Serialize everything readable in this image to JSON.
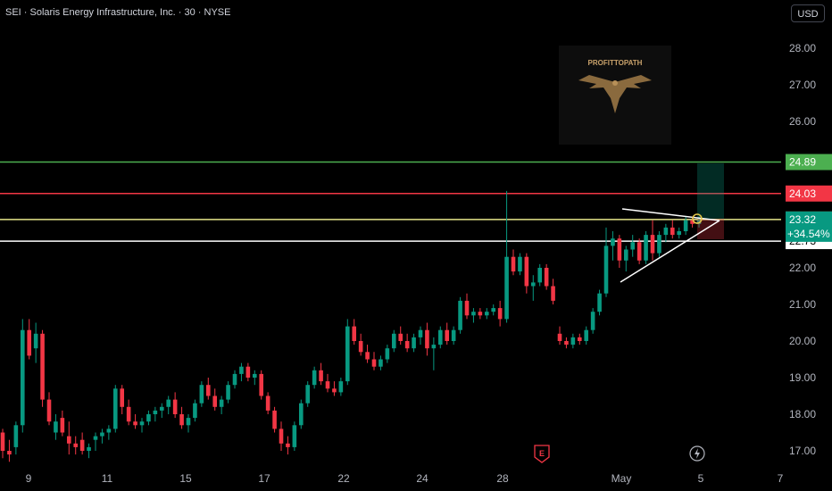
{
  "header": {
    "title": "SEI · Solaris Energy Infrastructure, Inc. · 30 · NYSE",
    "currency": "USD"
  },
  "watermark": {
    "text": "PROFITTOPATH",
    "icon": "eagle-icon"
  },
  "chart_data": {
    "type": "candlestick",
    "ylim": [
      16.7,
      28.8
    ],
    "y_ticks": [
      "17.00",
      "18.00",
      "19.00",
      "20.00",
      "21.00",
      "22.00",
      "23.00",
      "24.00",
      "25.00",
      "26.00",
      "27.00",
      "28.00"
    ],
    "x_ticks": [
      "9",
      "11",
      "15",
      "17",
      "22",
      "24",
      "28",
      "May",
      "5",
      "7"
    ],
    "levels": [
      {
        "value": 24.89,
        "label": "24.89",
        "color": "#4caf50"
      },
      {
        "value": 24.03,
        "label": "24.03",
        "color": "#f23645"
      },
      {
        "value": 23.32,
        "label": "23.32",
        "color": "#e5e58a"
      },
      {
        "value": 22.73,
        "label": "22.73",
        "color": "#ffffff"
      }
    ],
    "price": {
      "value": 23.32,
      "label": "23.32",
      "change": "+34.54%",
      "color": "#089981"
    },
    "colors": {
      "up": "#089981",
      "down": "#f23645",
      "bg": "#000000",
      "axis_text": "#b2b5be"
    },
    "candles": [
      [
        17.5,
        17.6,
        16.8,
        17.0
      ],
      [
        17.0,
        17.3,
        16.7,
        16.9
      ],
      [
        17.1,
        17.8,
        16.9,
        17.7
      ],
      [
        17.7,
        20.6,
        17.5,
        20.3
      ],
      [
        20.3,
        20.6,
        19.5,
        19.6
      ],
      [
        19.8,
        20.5,
        19.4,
        20.2
      ],
      [
        20.2,
        20.3,
        18.2,
        18.4
      ],
      [
        18.4,
        18.6,
        17.7,
        17.8
      ],
      [
        17.5,
        18.0,
        17.3,
        17.8
      ],
      [
        17.9,
        18.1,
        17.4,
        17.5
      ],
      [
        17.4,
        17.8,
        16.9,
        17.2
      ],
      [
        17.2,
        17.4,
        16.9,
        17.1
      ],
      [
        17.3,
        17.5,
        16.9,
        17.0
      ],
      [
        17.0,
        17.2,
        16.8,
        17.1
      ],
      [
        17.3,
        17.5,
        17.0,
        17.4
      ],
      [
        17.4,
        17.6,
        17.2,
        17.5
      ],
      [
        17.5,
        17.7,
        17.3,
        17.6
      ],
      [
        17.6,
        18.8,
        17.5,
        18.7
      ],
      [
        18.7,
        18.8,
        18.0,
        18.2
      ],
      [
        18.2,
        18.4,
        17.7,
        17.8
      ],
      [
        17.8,
        18.0,
        17.6,
        17.7
      ],
      [
        17.7,
        17.9,
        17.5,
        17.8
      ],
      [
        17.8,
        18.1,
        17.7,
        18.0
      ],
      [
        18.0,
        18.2,
        17.8,
        18.1
      ],
      [
        18.1,
        18.3,
        17.9,
        18.2
      ],
      [
        18.2,
        18.5,
        18.0,
        18.4
      ],
      [
        18.4,
        18.6,
        17.9,
        18.0
      ],
      [
        18.0,
        18.2,
        17.6,
        17.7
      ],
      [
        17.7,
        18.0,
        17.5,
        17.9
      ],
      [
        17.9,
        18.4,
        17.8,
        18.3
      ],
      [
        18.3,
        18.9,
        18.2,
        18.8
      ],
      [
        18.8,
        19.0,
        18.4,
        18.5
      ],
      [
        18.5,
        18.7,
        18.1,
        18.2
      ],
      [
        18.2,
        18.5,
        18.0,
        18.4
      ],
      [
        18.4,
        18.9,
        18.3,
        18.8
      ],
      [
        18.8,
        19.2,
        18.7,
        19.1
      ],
      [
        19.1,
        19.4,
        18.9,
        19.3
      ],
      [
        19.3,
        19.4,
        18.9,
        19.0
      ],
      [
        19.0,
        19.2,
        18.8,
        19.1
      ],
      [
        19.1,
        19.2,
        18.4,
        18.5
      ],
      [
        18.5,
        18.6,
        18.0,
        18.1
      ],
      [
        18.1,
        18.2,
        17.5,
        17.6
      ],
      [
        17.6,
        17.8,
        17.0,
        17.2
      ],
      [
        17.2,
        17.4,
        16.9,
        17.1
      ],
      [
        17.1,
        17.8,
        17.0,
        17.7
      ],
      [
        17.7,
        18.4,
        17.6,
        18.3
      ],
      [
        18.3,
        18.9,
        18.2,
        18.8
      ],
      [
        18.8,
        19.3,
        18.7,
        19.2
      ],
      [
        19.2,
        19.4,
        18.8,
        18.9
      ],
      [
        18.9,
        19.1,
        18.6,
        18.7
      ],
      [
        18.7,
        18.9,
        18.5,
        18.6
      ],
      [
        18.6,
        19.0,
        18.5,
        18.9
      ],
      [
        18.9,
        20.6,
        18.8,
        20.4
      ],
      [
        20.4,
        20.6,
        19.9,
        20.0
      ],
      [
        20.0,
        20.2,
        19.6,
        19.7
      ],
      [
        19.7,
        19.9,
        19.4,
        19.5
      ],
      [
        19.5,
        19.7,
        19.2,
        19.3
      ],
      [
        19.3,
        19.6,
        19.2,
        19.5
      ],
      [
        19.5,
        19.9,
        19.4,
        19.8
      ],
      [
        19.8,
        20.3,
        19.7,
        20.2
      ],
      [
        20.2,
        20.4,
        19.9,
        20.0
      ],
      [
        20.0,
        20.2,
        19.7,
        19.8
      ],
      [
        19.8,
        20.2,
        19.7,
        20.1
      ],
      [
        20.1,
        20.4,
        19.9,
        20.3
      ],
      [
        20.3,
        20.5,
        19.6,
        19.8
      ],
      [
        19.8,
        20.1,
        19.2,
        19.9
      ],
      [
        19.9,
        20.4,
        19.8,
        20.3
      ],
      [
        20.3,
        20.5,
        19.9,
        20.0
      ],
      [
        20.0,
        20.4,
        19.9,
        20.3
      ],
      [
        20.3,
        21.2,
        20.2,
        21.1
      ],
      [
        21.1,
        21.3,
        20.6,
        20.7
      ],
      [
        20.7,
        20.9,
        20.5,
        20.8
      ],
      [
        20.8,
        20.9,
        20.6,
        20.7
      ],
      [
        20.7,
        20.9,
        20.6,
        20.8
      ],
      [
        20.8,
        21.0,
        20.7,
        20.9
      ],
      [
        20.9,
        21.1,
        20.4,
        20.6
      ],
      [
        20.6,
        24.1,
        20.5,
        22.3
      ],
      [
        22.3,
        22.5,
        21.8,
        21.9
      ],
      [
        21.9,
        22.4,
        21.8,
        22.3
      ],
      [
        22.3,
        22.4,
        21.3,
        21.5
      ],
      [
        21.5,
        21.8,
        21.1,
        21.6
      ],
      [
        21.6,
        22.1,
        21.5,
        22.0
      ],
      [
        22.0,
        22.1,
        21.4,
        21.5
      ],
      [
        21.5,
        21.7,
        21.0,
        21.1
      ],
      [
        20.2,
        20.4,
        19.9,
        20.0
      ],
      [
        20.0,
        20.1,
        19.8,
        19.9
      ],
      [
        19.9,
        20.2,
        19.8,
        20.1
      ],
      [
        20.1,
        20.2,
        19.9,
        20.0
      ],
      [
        20.0,
        20.4,
        19.9,
        20.3
      ],
      [
        20.3,
        20.9,
        20.2,
        20.8
      ],
      [
        20.8,
        21.4,
        20.7,
        21.3
      ],
      [
        21.3,
        23.1,
        21.2,
        22.6
      ],
      [
        22.6,
        23.0,
        22.2,
        22.8
      ],
      [
        22.8,
        22.9,
        22.0,
        22.2
      ],
      [
        22.2,
        22.6,
        21.9,
        22.5
      ],
      [
        22.5,
        22.9,
        22.3,
        22.7
      ],
      [
        22.7,
        22.8,
        22.1,
        22.2
      ],
      [
        22.2,
        23.0,
        22.1,
        22.9
      ],
      [
        22.9,
        23.3,
        22.2,
        22.4
      ],
      [
        22.4,
        23.0,
        22.3,
        22.9
      ],
      [
        22.9,
        23.2,
        22.7,
        23.1
      ],
      [
        23.1,
        23.3,
        22.8,
        22.9
      ],
      [
        22.9,
        23.1,
        22.8,
        23.0
      ],
      [
        23.0,
        23.4,
        22.9,
        23.3
      ],
      [
        23.3,
        23.4,
        23.1,
        23.2
      ],
      [
        23.2,
        23.4,
        23.1,
        23.3
      ]
    ]
  }
}
